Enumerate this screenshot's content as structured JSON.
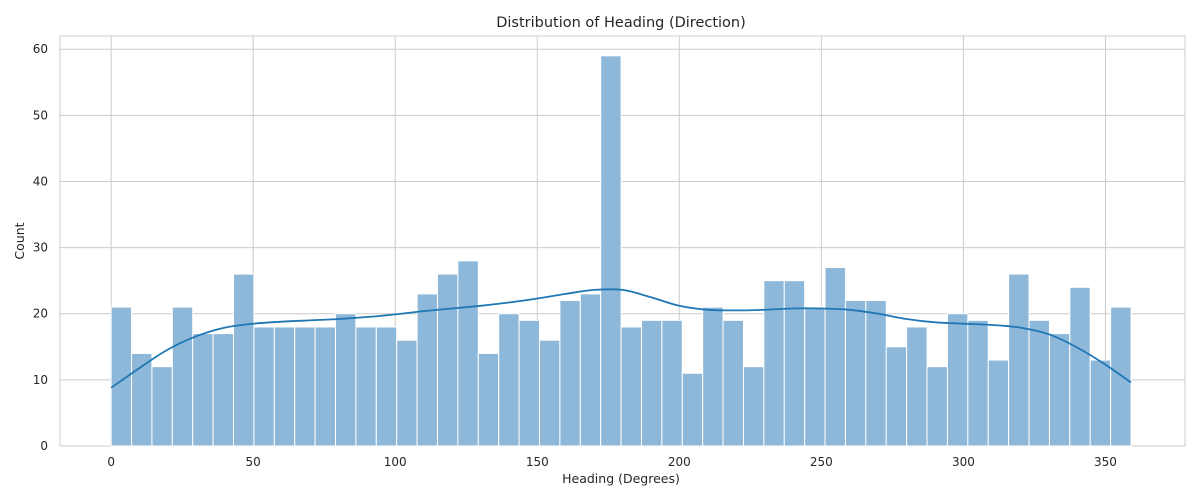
{
  "chart_data": {
    "type": "bar",
    "title": "Distribution of Heading (Direction)",
    "xlabel": "Heading (Degrees)",
    "ylabel": "Count",
    "xlim": [
      -18,
      378
    ],
    "ylim": [
      0,
      62
    ],
    "xticks": [
      0,
      50,
      100,
      150,
      200,
      250,
      300,
      350
    ],
    "yticks": [
      0,
      10,
      20,
      30,
      40,
      50,
      60
    ],
    "grid": true,
    "bar_color": "#8db8da",
    "bar_edge_color": "#ffffff",
    "kde_color": "#1f77b4",
    "bins": {
      "start": 0,
      "width": 7.18,
      "counts": [
        21,
        14,
        12,
        21,
        17,
        17,
        26,
        18,
        18,
        18,
        18,
        20,
        18,
        18,
        16,
        23,
        26,
        28,
        14,
        20,
        19,
        16,
        22,
        23,
        59,
        18,
        19,
        19,
        11,
        21,
        19,
        12,
        25,
        25,
        21,
        27,
        22,
        22,
        15,
        18,
        12,
        20,
        19,
        13,
        26,
        19,
        17,
        24,
        13,
        21
      ]
    },
    "kde": {
      "x": [
        0,
        10,
        20,
        30,
        40,
        50,
        60,
        70,
        80,
        90,
        100,
        110,
        120,
        130,
        140,
        150,
        160,
        170,
        180,
        190,
        200,
        210,
        220,
        230,
        240,
        250,
        260,
        270,
        280,
        290,
        300,
        310,
        320,
        330,
        340,
        350,
        359
      ],
      "y": [
        8.8,
        11.8,
        14.6,
        16.6,
        17.9,
        18.5,
        18.8,
        19.0,
        19.2,
        19.5,
        19.9,
        20.4,
        20.8,
        21.2,
        21.7,
        22.3,
        23.0,
        23.6,
        23.6,
        22.5,
        21.2,
        20.6,
        20.5,
        20.6,
        20.8,
        20.8,
        20.6,
        20.0,
        19.2,
        18.7,
        18.5,
        18.3,
        17.9,
        16.9,
        14.9,
        12.3,
        9.6
      ]
    }
  }
}
